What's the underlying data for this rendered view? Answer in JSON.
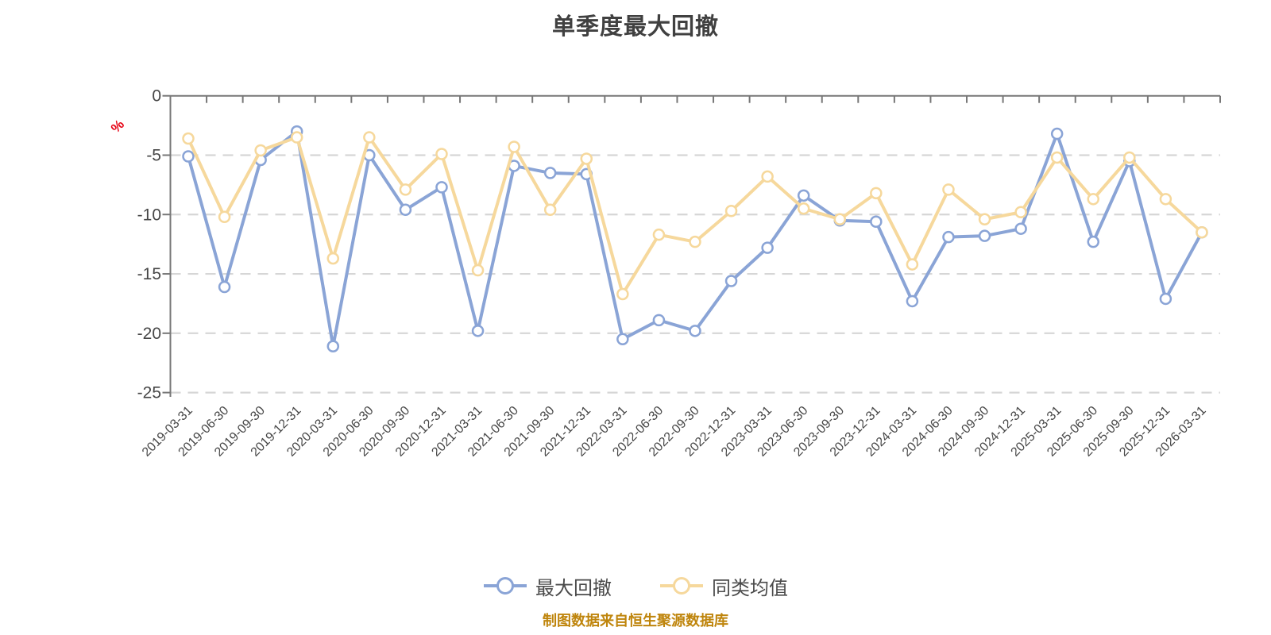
{
  "title": "单季度最大回撤",
  "source_note": "制图数据来自恒生聚源数据库",
  "axis": {
    "y_unit_label": "%",
    "y_ticks": [
      0,
      -5,
      -10,
      -15,
      -20,
      -25
    ]
  },
  "legend": {
    "items": [
      {
        "label": "最大回撤",
        "color": "#8aa4d6"
      },
      {
        "label": "同类均值",
        "color": "#f6d89c"
      }
    ]
  },
  "colors": {
    "series_max_drawdown": "#8aa4d6",
    "series_category_avg": "#f6d89c",
    "marker_fill": "#ffffff",
    "y_unit_label": "#e60012",
    "source_note": "#bf850c",
    "title_text": "#404040",
    "axis_line": "#777777",
    "tick_label": "#474747",
    "grid_line": "#d6d6d6"
  },
  "chart_data": {
    "type": "line",
    "title": "单季度最大回撤",
    "xlabel": "",
    "ylabel": "%",
    "ylim": [
      -25,
      0
    ],
    "yticks": [
      0,
      -5,
      -10,
      -15,
      -20,
      -25
    ],
    "grid": "horizontal-dashed",
    "legend_position": "bottom",
    "categories": [
      "2019-03-31",
      "2019-06-30",
      "2019-09-30",
      "2019-12-31",
      "2020-03-31",
      "2020-06-30",
      "2020-09-30",
      "2020-12-31",
      "2021-03-31",
      "2021-06-30",
      "2021-09-30",
      "2021-12-31",
      "2022-03-31",
      "2022-06-30",
      "2022-09-30",
      "2022-12-31",
      "2023-03-31",
      "2023-06-30",
      "2023-09-30",
      "2023-12-31",
      "2024-03-31",
      "2024-06-30",
      "2024-09-30",
      "2024-12-31",
      "2025-03-31",
      "2025-06-30",
      "2025-09-30",
      "2025-12-31",
      "2026-03-31"
    ],
    "series": [
      {
        "name": "最大回撤",
        "color": "#8aa4d6",
        "values": [
          -5.1,
          -16.1,
          -5.4,
          -3.0,
          -21.1,
          -5.0,
          -9.6,
          -7.7,
          -19.8,
          -5.9,
          -6.5,
          -6.6,
          -20.5,
          -18.9,
          -19.8,
          -15.6,
          -12.8,
          -8.4,
          -10.5,
          -10.6,
          -17.3,
          -11.9,
          -11.8,
          -11.2,
          -3.2,
          -12.3,
          -5.5,
          -17.1,
          -11.5
        ]
      },
      {
        "name": "同类均值",
        "color": "#f6d89c",
        "values": [
          -3.6,
          -10.2,
          -4.6,
          -3.5,
          -13.7,
          -3.5,
          -7.9,
          -4.9,
          -14.7,
          -4.3,
          -9.6,
          -5.3,
          -16.7,
          -11.7,
          -12.3,
          -9.7,
          -6.8,
          -9.5,
          -10.4,
          -8.2,
          -14.2,
          -7.9,
          -10.4,
          -9.8,
          -5.2,
          -8.7,
          -5.2,
          -8.7,
          -11.5
        ]
      }
    ]
  }
}
